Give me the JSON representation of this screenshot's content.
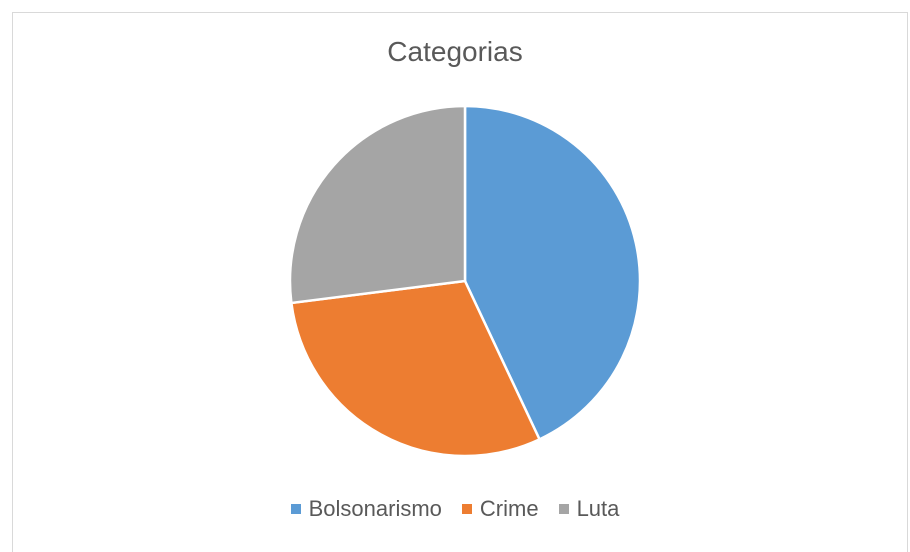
{
  "chart_data": {
    "type": "pie",
    "title": "Categorias",
    "categories": [
      "Bolsonarismo",
      "Crime",
      "Luta"
    ],
    "values": [
      43,
      30,
      27
    ],
    "colors": [
      "#5b9bd5",
      "#ed7d31",
      "#a5a5a5"
    ],
    "legend_position": "bottom"
  }
}
